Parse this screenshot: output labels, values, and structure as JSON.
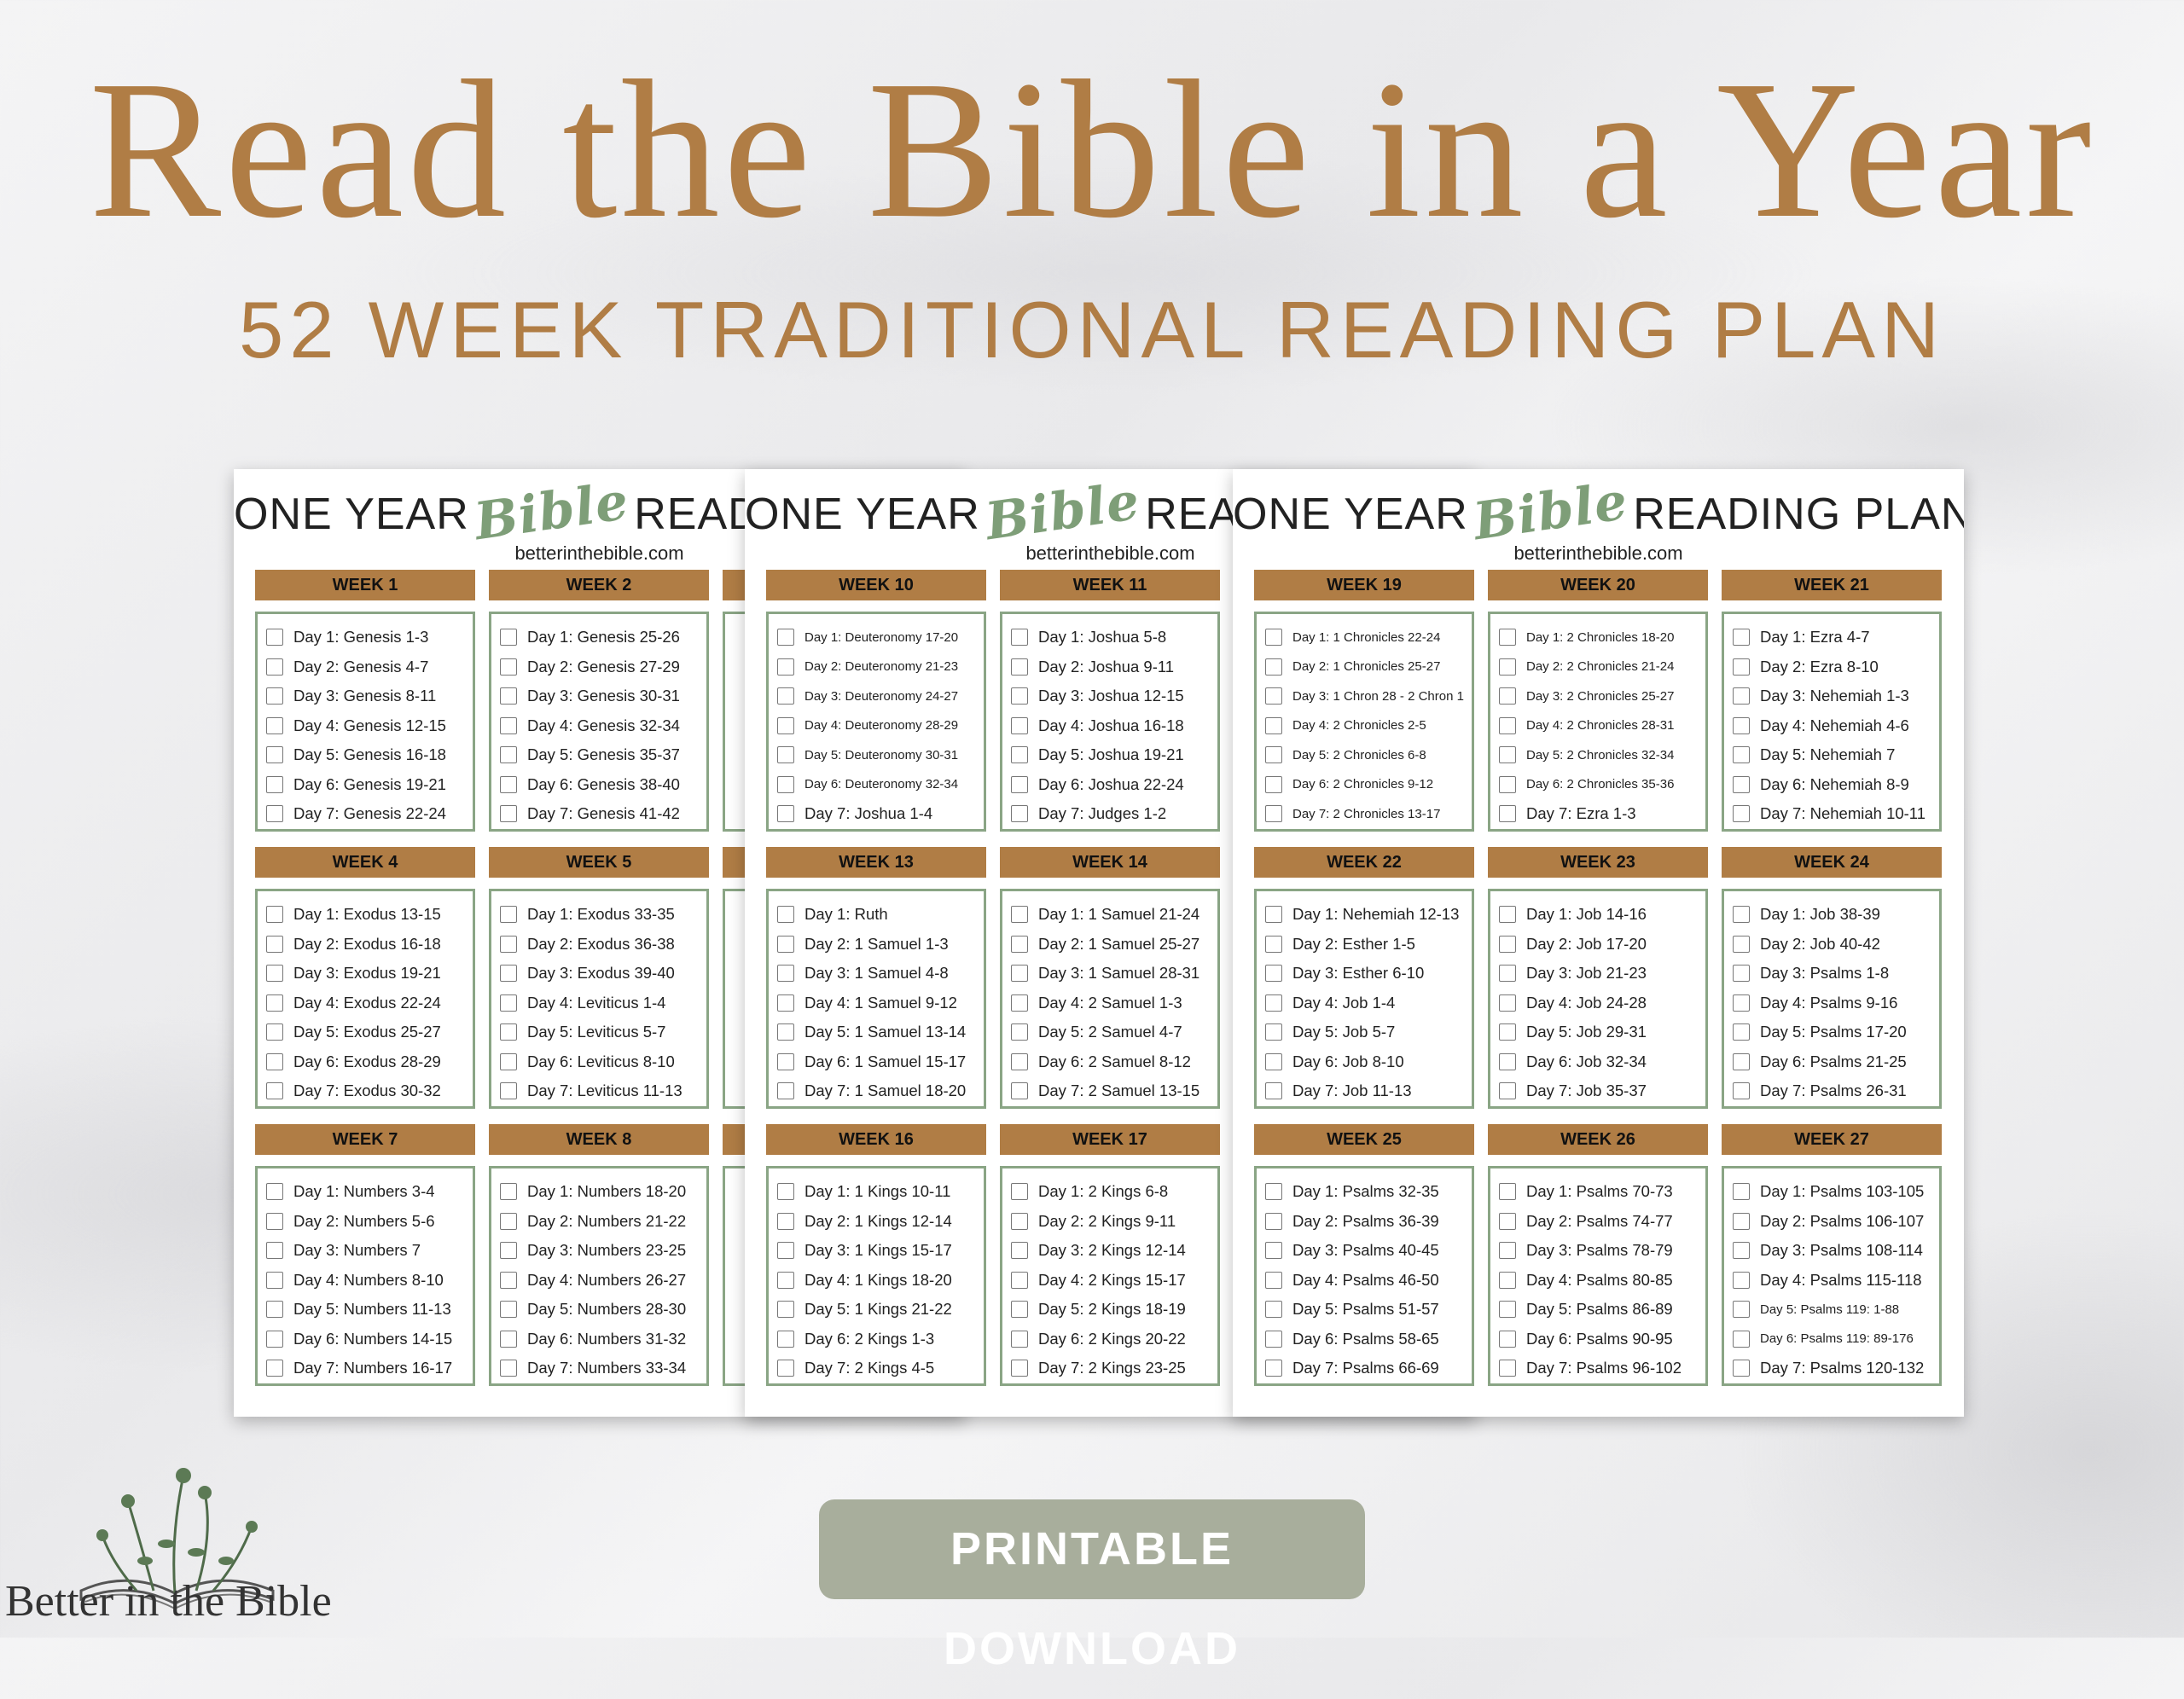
{
  "header": {
    "title": "Read the Bible in a Year",
    "subtitle": "52 WEEK TRADITIONAL READING PLAN"
  },
  "colors": {
    "accent": "#b07d45",
    "green": "#8aa585",
    "button": "#a8ae9c"
  },
  "pages": [
    {
      "heading_pre": "ONE YEAR",
      "heading_script": "Bible",
      "heading_post": "READING PLAN",
      "site": "betterinthebible.com",
      "weeks": [
        {
          "title": "WEEK 1",
          "days": [
            "Day 1: Genesis 1-3",
            "Day 2: Genesis 4-7",
            "Day 3: Genesis 8-11",
            "Day 4: Genesis 12-15",
            "Day 5: Genesis 16-18",
            "Day 6: Genesis 19-21",
            "Day 7: Genesis 22-24"
          ]
        },
        {
          "title": "WEEK 2",
          "days": [
            "Day 1: Genesis 25-26",
            "Day 2: Genesis 27-29",
            "Day 3: Genesis 30-31",
            "Day 4: Genesis 32-34",
            "Day 5: Genesis 35-37",
            "Day 6: Genesis 38-40",
            "Day 7: Genesis 41-42"
          ]
        },
        {
          "title": "",
          "days": []
        },
        {
          "title": "WEEK 4",
          "days": [
            "Day 1: Exodus 13-15",
            "Day 2: Exodus 16-18",
            "Day 3: Exodus 19-21",
            "Day 4: Exodus 22-24",
            "Day 5: Exodus 25-27",
            "Day 6: Exodus 28-29",
            "Day 7: Exodus 30-32"
          ]
        },
        {
          "title": "WEEK 5",
          "days": [
            "Day 1: Exodus 33-35",
            "Day 2: Exodus 36-38",
            "Day 3: Exodus 39-40",
            "Day 4: Leviticus 1-4",
            "Day 5: Leviticus 5-7",
            "Day 6: Leviticus 8-10",
            "Day 7: Leviticus 11-13"
          ]
        },
        {
          "title": "",
          "days": []
        },
        {
          "title": "WEEK 7",
          "days": [
            "Day 1: Numbers 3-4",
            "Day 2: Numbers 5-6",
            "Day 3: Numbers 7",
            "Day 4: Numbers 8-10",
            "Day 5: Numbers 11-13",
            "Day 6: Numbers 14-15",
            "Day 7: Numbers 16-17"
          ]
        },
        {
          "title": "WEEK 8",
          "days": [
            "Day 1: Numbers 18-20",
            "Day 2: Numbers 21-22",
            "Day 3: Numbers 23-25",
            "Day 4: Numbers 26-27",
            "Day 5: Numbers 28-30",
            "Day 6: Numbers 31-32",
            "Day 7: Numbers 33-34"
          ]
        },
        {
          "title": "",
          "days": []
        }
      ]
    },
    {
      "heading_pre": "ONE YEAR",
      "heading_script": "Bible",
      "heading_post": "READING PLAN",
      "site": "betterinthebible.com",
      "weeks": [
        {
          "title": "WEEK 10",
          "days": [
            "Day 1: Deuteronomy 17-20",
            "Day 2: Deuteronomy 21-23",
            "Day 3: Deuteronomy 24-27",
            "Day 4: Deuteronomy 28-29",
            "Day 5: Deuteronomy 30-31",
            "Day 6: Deuteronomy 32-34",
            "Day 7: Joshua 1-4"
          ]
        },
        {
          "title": "WEEK 11",
          "days": [
            "Day 1: Joshua 5-8",
            "Day 2: Joshua 9-11",
            "Day 3: Joshua 12-15",
            "Day 4: Joshua 16-18",
            "Day 5: Joshua 19-21",
            "Day 6: Joshua 22-24",
            "Day 7: Judges 1-2"
          ]
        },
        {
          "title": "",
          "days": []
        },
        {
          "title": "WEEK 13",
          "days": [
            "Day 1: Ruth",
            "Day 2: 1 Samuel 1-3",
            "Day 3: 1 Samuel 4-8",
            "Day 4: 1 Samuel 9-12",
            "Day 5: 1 Samuel 13-14",
            "Day 6: 1 Samuel 15-17",
            "Day 7: 1 Samuel 18-20"
          ]
        },
        {
          "title": "WEEK 14",
          "days": [
            "Day 1: 1 Samuel 21-24",
            "Day 2: 1 Samuel 25-27",
            "Day 3: 1 Samuel 28-31",
            "Day 4: 2 Samuel 1-3",
            "Day 5: 2 Samuel 4-7",
            "Day 6: 2 Samuel 8-12",
            "Day 7: 2 Samuel 13-15"
          ]
        },
        {
          "title": "",
          "days": []
        },
        {
          "title": "WEEK 16",
          "days": [
            "Day 1: 1 Kings 10-11",
            "Day 2: 1 Kings 12-14",
            "Day 3: 1 Kings 15-17",
            "Day 4: 1 Kings 18-20",
            "Day 5: 1 Kings 21-22",
            "Day 6: 2 Kings 1-3",
            "Day 7: 2 Kings 4-5"
          ]
        },
        {
          "title": "WEEK 17",
          "days": [
            "Day 1: 2 Kings 6-8",
            "Day 2: 2 Kings 9-11",
            "Day 3: 2 Kings 12-14",
            "Day 4: 2 Kings 15-17",
            "Day 5: 2 Kings 18-19",
            "Day 6: 2 Kings 20-22",
            "Day 7: 2 Kings 23-25"
          ]
        },
        {
          "title": "",
          "days": []
        }
      ]
    },
    {
      "heading_pre": "ONE YEAR",
      "heading_script": "Bible",
      "heading_post": "READING PLAN",
      "site": "betterinthebible.com",
      "weeks": [
        {
          "title": "WEEK 19",
          "days": [
            "Day 1: 1 Chronicles 22-24",
            "Day 2: 1 Chronicles 25-27",
            "Day 3: 1 Chron 28 - 2 Chron 1",
            "Day 4: 2 Chronicles 2-5",
            "Day 5: 2 Chronicles 6-8",
            "Day 6: 2 Chronicles 9-12",
            "Day 7: 2 Chronicles 13-17"
          ]
        },
        {
          "title": "WEEK 20",
          "days": [
            "Day 1: 2 Chronicles 18-20",
            "Day 2: 2 Chronicles 21-24",
            "Day 3: 2 Chronicles 25-27",
            "Day 4: 2 Chronicles 28-31",
            "Day 5: 2 Chronicles 32-34",
            "Day 6: 2 Chronicles 35-36",
            "Day 7: Ezra 1-3"
          ]
        },
        {
          "title": "WEEK 21",
          "days": [
            "Day 1: Ezra 4-7",
            "Day 2: Ezra 8-10",
            "Day 3: Nehemiah 1-3",
            "Day 4: Nehemiah 4-6",
            "Day 5: Nehemiah 7",
            "Day 6: Nehemiah 8-9",
            "Day 7: Nehemiah 10-11"
          ]
        },
        {
          "title": "WEEK 22",
          "days": [
            "Day 1: Nehemiah 12-13",
            "Day 2: Esther 1-5",
            "Day 3: Esther 6-10",
            "Day 4: Job 1-4",
            "Day 5: Job 5-7",
            "Day 6: Job 8-10",
            "Day 7: Job 11-13"
          ]
        },
        {
          "title": "WEEK 23",
          "days": [
            "Day 1: Job 14-16",
            "Day 2: Job 17-20",
            "Day 3: Job 21-23",
            "Day 4: Job 24-28",
            "Day 5: Job 29-31",
            "Day 6: Job 32-34",
            "Day 7: Job 35-37"
          ]
        },
        {
          "title": "WEEK 24",
          "days": [
            "Day 1: Job 38-39",
            "Day 2: Job 40-42",
            "Day 3: Psalms 1-8",
            "Day 4: Psalms 9-16",
            "Day 5: Psalms 17-20",
            "Day 6: Psalms 21-25",
            "Day 7: Psalms 26-31"
          ]
        },
        {
          "title": "WEEK 25",
          "days": [
            "Day 1: Psalms 32-35",
            "Day 2: Psalms 36-39",
            "Day 3: Psalms 40-45",
            "Day 4: Psalms 46-50",
            "Day 5: Psalms 51-57",
            "Day 6: Psalms 58-65",
            "Day 7: Psalms 66-69"
          ]
        },
        {
          "title": "WEEK 26",
          "days": [
            "Day 1: Psalms 70-73",
            "Day 2: Psalms 74-77",
            "Day 3: Psalms 78-79",
            "Day 4: Psalms 80-85",
            "Day 5: Psalms 86-89",
            "Day 6: Psalms 90-95",
            "Day 7: Psalms 96-102"
          ]
        },
        {
          "title": "WEEK 27",
          "days": [
            "Day 1: Psalms 103-105",
            "Day 2: Psalms 106-107",
            "Day 3: Psalms 108-114",
            "Day 4: Psalms 115-118",
            "Day 5: Psalms 119: 1-88",
            "Day 6: Psalms 119: 89-176",
            "Day 7: Psalms 120-132"
          ]
        }
      ]
    }
  ],
  "logo": {
    "name": "Better in the Bible",
    "icon": "open-book-with-flowers-icon"
  },
  "button": {
    "label": "PRINTABLE DOWNLOAD"
  }
}
